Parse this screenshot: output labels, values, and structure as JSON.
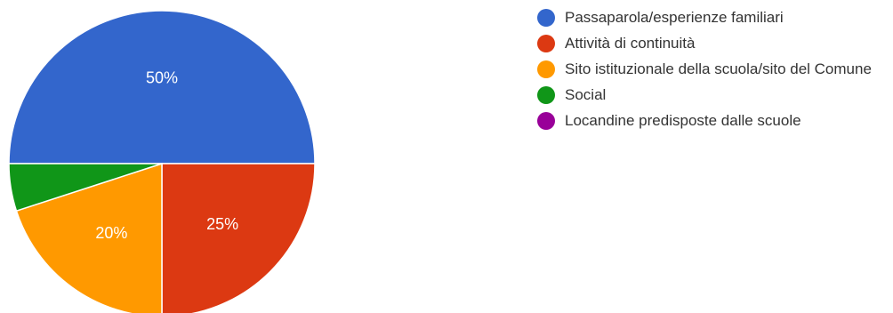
{
  "chart_data": {
    "type": "pie",
    "title": "",
    "categories": [
      "Passaparola/esperienze familiari",
      "Attività di continuità",
      "Sito istituzionale della scuola/sito del Comune",
      "Social",
      "Locandine predisposte dalle scuole"
    ],
    "values": [
      50,
      25,
      20,
      5,
      0
    ],
    "value_labels": [
      "50%",
      "25%",
      "20%",
      "",
      ""
    ],
    "colors": [
      "#3366cc",
      "#dc3912",
      "#ff9900",
      "#109618",
      "#990099"
    ],
    "legend_position": "right",
    "start_angle": "90 degrees (left), clockwise"
  }
}
